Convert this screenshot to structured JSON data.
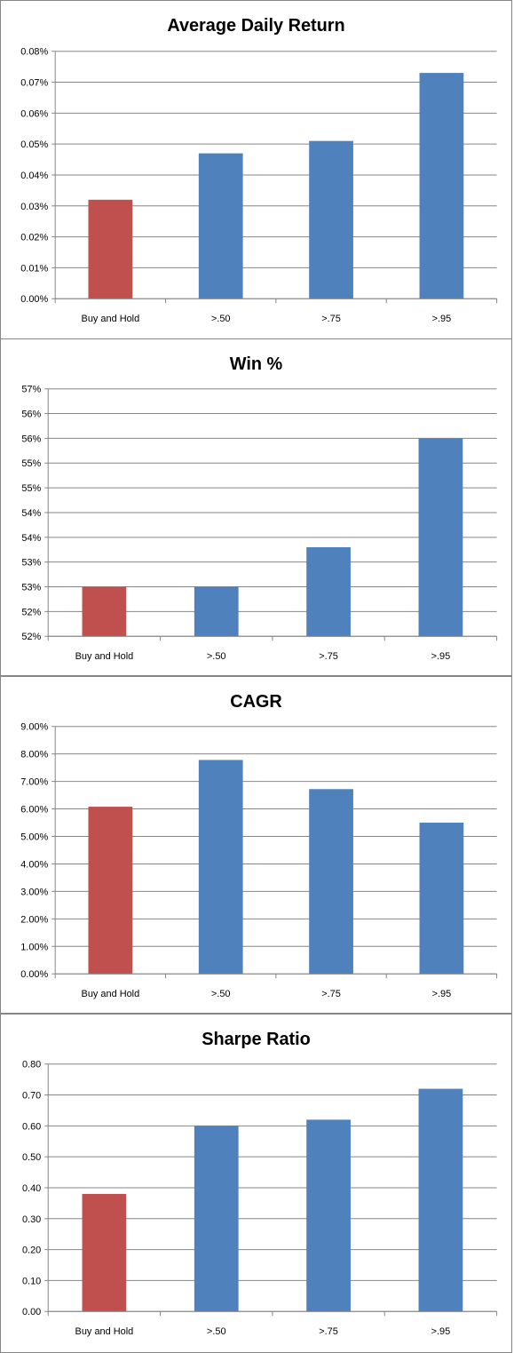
{
  "chart_data": [
    {
      "type": "bar",
      "title": "Average Daily Return",
      "categories": [
        "Buy and Hold",
        ">.50",
        ">.75",
        ">.95"
      ],
      "values": [
        0.032,
        0.047,
        0.051,
        0.073
      ],
      "bar_colors": [
        "#C0504D",
        "#4F81BD",
        "#4F81BD",
        "#4F81BD"
      ],
      "ylim": [
        0,
        0.08
      ],
      "yticks": [
        0,
        0.01,
        0.02,
        0.03,
        0.04,
        0.05,
        0.06,
        0.07,
        0.08
      ],
      "ytick_labels": [
        "0.00%",
        "0.01%",
        "0.02%",
        "0.03%",
        "0.04%",
        "0.05%",
        "0.06%",
        "0.07%",
        "0.08%"
      ],
      "xlabel": "",
      "ylabel": "",
      "grid": true
    },
    {
      "type": "bar",
      "title": "Win %",
      "categories": [
        "Buy and Hold",
        ">.50",
        ">.75",
        ">.95"
      ],
      "values": [
        52.6,
        52.6,
        53.4,
        55.6
      ],
      "bar_colors": [
        "#C0504D",
        "#4F81BD",
        "#4F81BD",
        "#4F81BD"
      ],
      "ylim": [
        51.6,
        56.6
      ],
      "yticks": [
        51.6,
        52.1,
        52.6,
        53.1,
        53.6,
        54.1,
        54.6,
        55.1,
        55.6,
        56.1,
        56.6
      ],
      "ytick_labels": [
        "52%",
        "52%",
        "53%",
        "53%",
        "54%",
        "54%",
        "55%",
        "55%",
        "56%",
        "56%",
        "57%"
      ],
      "xlabel": "",
      "ylabel": "",
      "grid": true
    },
    {
      "type": "bar",
      "title": "CAGR",
      "categories": [
        "Buy and Hold",
        ">.50",
        ">.75",
        ">.95"
      ],
      "values": [
        6.08,
        7.78,
        6.72,
        5.5
      ],
      "bar_colors": [
        "#C0504D",
        "#4F81BD",
        "#4F81BD",
        "#4F81BD"
      ],
      "ylim": [
        0,
        9
      ],
      "yticks": [
        0,
        1,
        2,
        3,
        4,
        5,
        6,
        7,
        8,
        9
      ],
      "ytick_labels": [
        "0.00%",
        "1.00%",
        "2.00%",
        "3.00%",
        "4.00%",
        "5.00%",
        "6.00%",
        "7.00%",
        "8.00%",
        "9.00%"
      ],
      "xlabel": "",
      "ylabel": "",
      "grid": true
    },
    {
      "type": "bar",
      "title": "Sharpe Ratio",
      "categories": [
        "Buy and Hold",
        ">.50",
        ">.75",
        ">.95"
      ],
      "values": [
        0.38,
        0.6,
        0.62,
        0.72
      ],
      "bar_colors": [
        "#C0504D",
        "#4F81BD",
        "#4F81BD",
        "#4F81BD"
      ],
      "ylim": [
        0,
        0.8
      ],
      "yticks": [
        0,
        0.1,
        0.2,
        0.3,
        0.4,
        0.5,
        0.6,
        0.7,
        0.8
      ],
      "ytick_labels": [
        "0.00",
        "0.10",
        "0.20",
        "0.30",
        "0.40",
        "0.50",
        "0.60",
        "0.70",
        "0.80"
      ],
      "xlabel": "",
      "ylabel": "",
      "grid": true
    }
  ]
}
